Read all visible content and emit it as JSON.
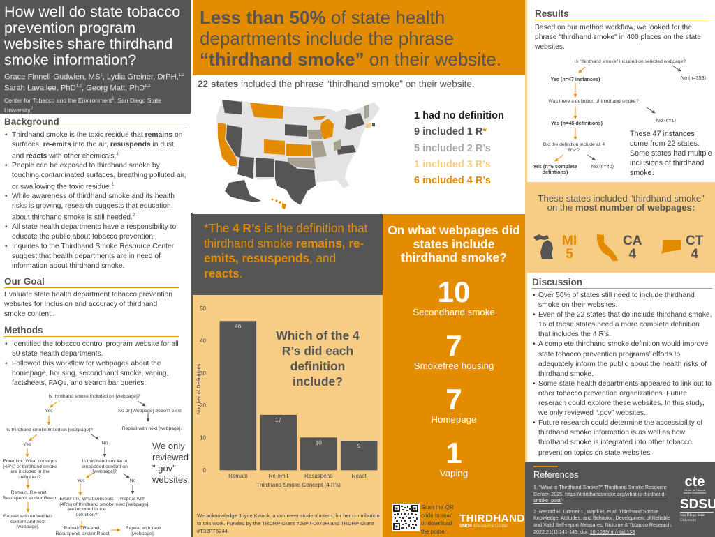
{
  "title": {
    "heading": "How well do state tobacco prevention program websites share thirdhand smoke information?",
    "authors": [
      {
        "name": "Grace Finnell-Gudwien, MS",
        "sup": "1"
      },
      {
        "name": "Lydia Greiner, DrPH,",
        "sup": "1,2"
      },
      {
        "name": "Sarah Lavallee, PhD",
        "sup": "1,2"
      },
      {
        "name": "Georg Matt, PhD",
        "sup": "1,2"
      }
    ],
    "affiliation_1": "Center for Tobacco and the Environment",
    "affiliation_2": "San Diego State University"
  },
  "background": {
    "heading": "Background",
    "items": [
      {
        "pre": "Thirdhand smoke is the toxic residue that ",
        "b1": "remains",
        "mid1": " on surfaces, ",
        "b2": "re-emits",
        "mid2": " into the air, ",
        "b3": "resuspends",
        "mid3": " in dust, and ",
        "b4": "reacts",
        "post": " with other chemicals.",
        "sup": "1"
      },
      {
        "text": "People can be exposed to thirdhand smoke by touching contaminated surfaces, breathing polluted air, or swallowing the toxic residue.",
        "sup": "1"
      },
      {
        "text": "While awareness of thirdhand smoke and its health risks is growing, research suggests that education about thirdhand smoke is still needed.",
        "sup": "2"
      },
      {
        "text": "All state health departments have a responsibility to educate the public about tobacco prevention."
      },
      {
        "text": "Inquiries to the Thirdhand Smoke Resource Center suggest that health departments are in need of information about thirdhand smoke."
      }
    ]
  },
  "goal": {
    "heading": "Our Goal",
    "text": "Evaluate state health department tobacco prevention websites for inclusion and accuracy of thirdhand smoke content."
  },
  "methods": {
    "heading": "Methods",
    "items": [
      "Identified the tobacco control program website for all 50 state health departments.",
      "Followed this workflow for webpages about the homepage, housing, secondhand smoke, vaping, factsheets, FAQs, and search bar queries:"
    ],
    "flowchart": {
      "q1": "Is thirdhand smoke included on [webpage]?",
      "yes1": "Yes",
      "no1": "No or [Webpage] doesn't exist",
      "repeat1": "Repeat with next [webpage].",
      "q2": "Is thirdhand smoke linked on [webpage]?",
      "yes2": "Yes",
      "no2": "No",
      "enter1": "Enter link. What concepts (4R's) of thirdhand smoke are included in the definition?",
      "q3": "Is thirdhand smoke in embedded content on [webpage]?",
      "remain1": "Remain, Re-emit, Resuspend, and/or React",
      "yes3": "Yes",
      "no3": "No",
      "repeat_embedded": "Repeat with embedded content and next [webpage].",
      "enter2": "Enter link. What concepts (4R's) of thirdhand smoke are included in the definition?",
      "repeat2": "Repeat with next [webpage].",
      "remain2": "Remain, Re-emit, Resuspend, and/or React",
      "repeat3": "Repeat with next [webpage]."
    },
    "gov_note": "We only reviewed \".gov\" websites."
  },
  "banner": {
    "bold1": "Less than 50%",
    "text1": " of state health departments include the phrase ",
    "bold2": "“thirdhand smoke”",
    "text2": " on their website."
  },
  "states_line": {
    "bold": "22 states",
    "text": " included the phrase “thirdhand smoke” on their website."
  },
  "map": {
    "colors": {
      "none": "#e3e3e3",
      "one_r": "#555555",
      "two_r": "#a69f92",
      "three_r": "#f7cd86",
      "four_r": "#e38c00"
    },
    "legend": [
      {
        "label": "1 had no definition",
        "color": "#1e1e1e"
      },
      {
        "label": "9 included 1 R*",
        "color": "#555555",
        "asterisk_color": "#e38c00"
      },
      {
        "label": "5 included 2 R’s",
        "color": "#a8a8a8"
      },
      {
        "label": "1 included 3 R’s",
        "color": "#f7cd86"
      },
      {
        "label": "6 included 4 R’s",
        "color": "#e38c00"
      }
    ]
  },
  "definition_box": {
    "t1": "*The ",
    "b1": "4 R’s",
    "t2": " is the definition that thirdhand smoke ",
    "b2": "remains, re-emits, resuspends",
    "t3": ", and ",
    "b3": "reacts",
    "t4": "."
  },
  "chart_data": {
    "type": "bar",
    "title": "Which of the 4 R’s did each definition include?",
    "categories": [
      "Remain",
      "Re-emit",
      "Resuspend",
      "React"
    ],
    "values": [
      46,
      17,
      10,
      9
    ],
    "xlabel": "Thirdhand Smoke Concept (4 R's)",
    "ylabel": "Number of Definitions",
    "ylim": [
      0,
      50
    ],
    "yticks": [
      0,
      10,
      20,
      30,
      40,
      50
    ],
    "grid": false,
    "bar_color": "#555555",
    "background": "#f7cd86"
  },
  "acknowledgement": "We acknowledge Joyce Kwack, a volunteer student intern, for her contribution to this work. Funded by the TRDRP Grant #28PT-0078H and TRDRP Grant #T32PT6244.",
  "webpages": {
    "heading": "On what webpages did states include thirdhand smoke?",
    "items": [
      {
        "count": "10",
        "label": "Secondhand smoke"
      },
      {
        "count": "7",
        "label": "Smokefree housing"
      },
      {
        "count": "7",
        "label": "Homepage"
      },
      {
        "count": "1",
        "label": "Vaping"
      }
    ],
    "qr_text": "Scan the QR code to read or download the poster.",
    "logo_big": "THIRDHAND",
    "logo_small_bold": "SMOKE",
    "logo_small": "Resource Center"
  },
  "results": {
    "heading": "Results",
    "text": "Based on our method workflow, we looked for the phrase \"thirdhand smoke\" in 400 places on the state websites.",
    "flow": {
      "q1": "Is \"thirdhand smoke\" included on selected webpage?",
      "yes1": "Yes (n=47 instances)",
      "no1": "No (n=353)",
      "q2": "Was there a definition of thirdhand smoke?",
      "yes2": "Yes (n=46 definitions)",
      "no2": "No (n=1)",
      "q3": "Did the definition include all 4 R's*?",
      "yes3": "Yes (n=6 complete defintions)",
      "no3": "No (n=40)"
    },
    "note": "These 47 instances come from 22 states. Some states had multple inclusions of thirdhand smoke."
  },
  "top_states": {
    "t1": "These states included “thirdhand smoke” on the ",
    "b1": "most number of webpages:",
    "states": [
      {
        "abbr": "MI",
        "count": "5",
        "color": "#e38c00",
        "icon": "michigan-icon"
      },
      {
        "abbr": "CA",
        "count": "4",
        "color": "#555555",
        "icon": "california-icon"
      },
      {
        "abbr": "CT",
        "count": "4",
        "color": "#555555",
        "icon": "connecticut-icon"
      }
    ]
  },
  "discussion": {
    "heading": "Discussion",
    "items": [
      "Over 50% of states still need to include thirdhand smoke on their websites.",
      "Even of the 22 states that do include thirdhand smoke, 16 of these states need a more complete definition that includes the 4 R’s.",
      " A complete thirdhand smoke definition would improve state tobacco prevention programs’ efforts to adequately inform the public about the health risks of thirdhand smoke.",
      "Some state health departments appeared to link out to other tobacco prevention organizations. Future reserach could explore these websites. In this study, we only reviewed “.gov” websites.",
      "Future research could determine the accessibility of thirdhand smoke information is as well as how thirdhand smoke is integrated into other tobacco prevention topics on state websites."
    ]
  },
  "references": {
    "heading": "References",
    "ref1_text": "1. “What is Thirdhand Smoke?” Thirdhand Smoke Resource Center. 2025. ",
    "ref1_link": "https://thirdhandsmoke.org/what-is-thirdhand-smoke_post/",
    "ref2_text": "2. Record R, Greiner L, Wipfli H, et al. Thirdhand Smoke Knowledge, Attitudes, and Behavior: Development of Reliable and Valid Self-report Measures. Nictoine & Tobacco Research, 2022;21(1):141-145. doi: ",
    "ref2_link": "10.1093/ntr/ntab133",
    "cte_logo": "cte",
    "cte_sub": "Center for Tobacco and the Environment",
    "sdsu_logo": "SDSU",
    "sdsu_sub": "San Diego State University"
  }
}
